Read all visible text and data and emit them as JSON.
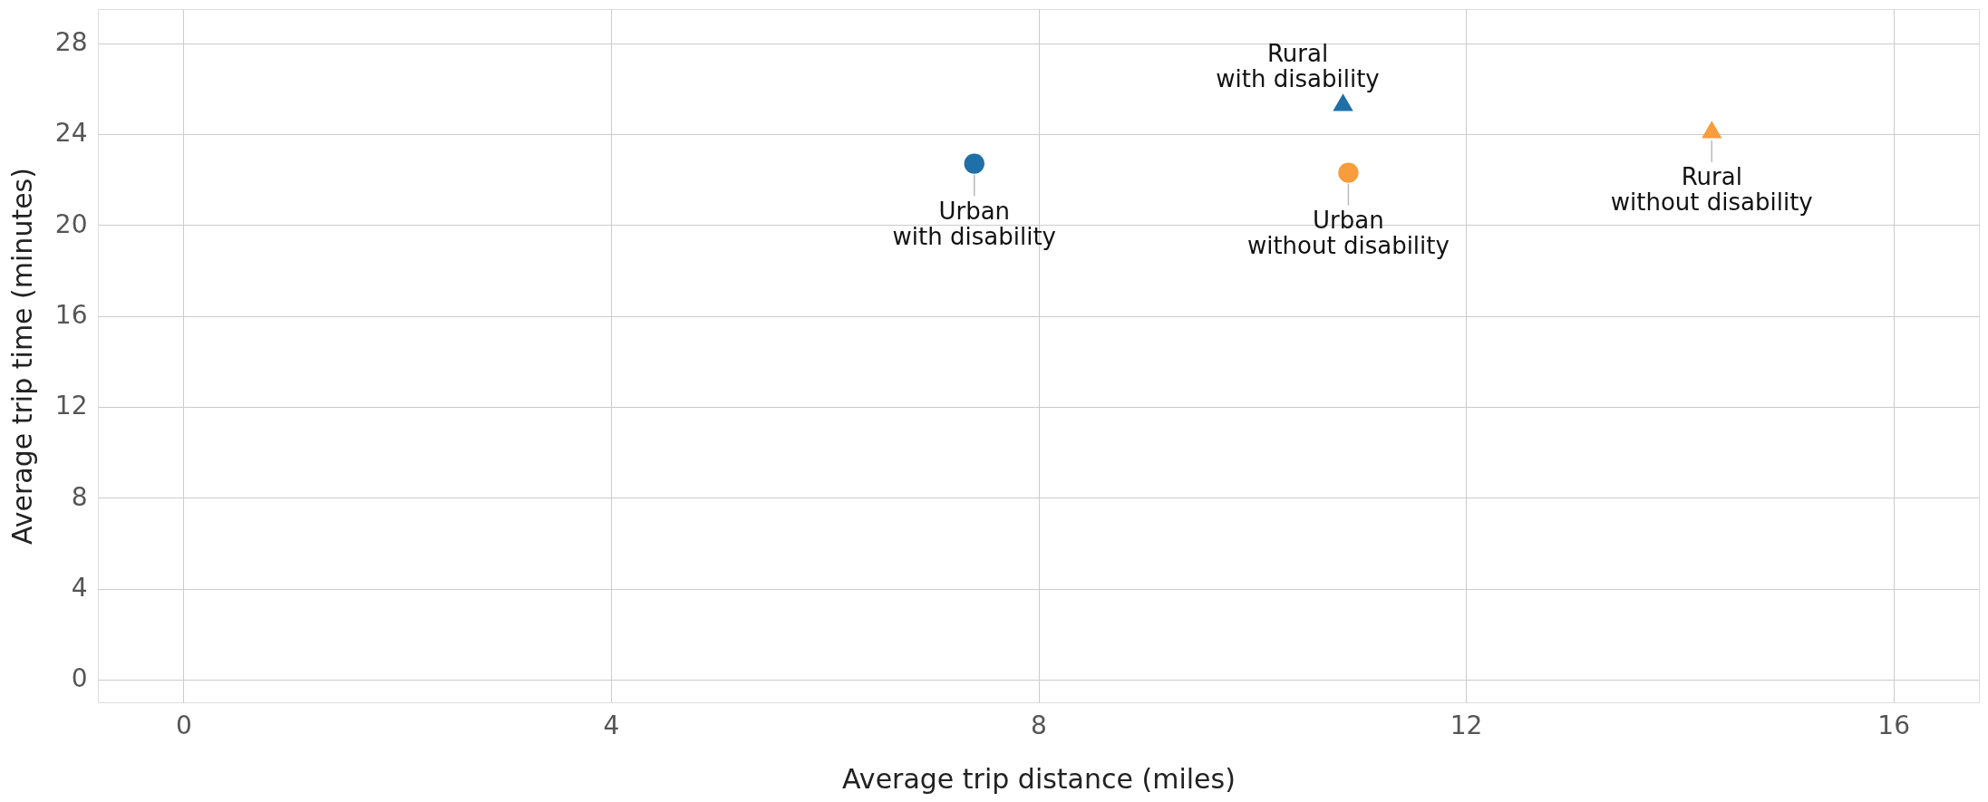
{
  "chart_data": {
    "type": "scatter",
    "xlabel": "Average trip distance (miles)",
    "ylabel": "Average trip time (minutes)",
    "xlim": [
      -0.8,
      16.8
    ],
    "ylim": [
      -1,
      29.5
    ],
    "xticks": [
      0,
      4,
      8,
      12,
      16
    ],
    "yticks": [
      0,
      4,
      8,
      12,
      16,
      20,
      24,
      28
    ],
    "grid": true,
    "series": [
      {
        "name": "Urban\nwith disability",
        "color": "#1f6fa8",
        "marker": "circle",
        "x": [
          7.4
        ],
        "values": [
          22.7
        ]
      },
      {
        "name": "Rural\nwith disability",
        "color": "#1f6fa8",
        "marker": "triangle",
        "x": [
          10.85
        ],
        "values": [
          25.4
        ]
      },
      {
        "name": "Urban\nwithout disability",
        "color": "#f89c3c",
        "marker": "circle",
        "x": [
          10.9
        ],
        "values": [
          22.3
        ]
      },
      {
        "name": "Rural\nwithout disability",
        "color": "#f89c3c",
        "marker": "triangle",
        "x": [
          14.3
        ],
        "values": [
          24.2
        ]
      }
    ]
  }
}
